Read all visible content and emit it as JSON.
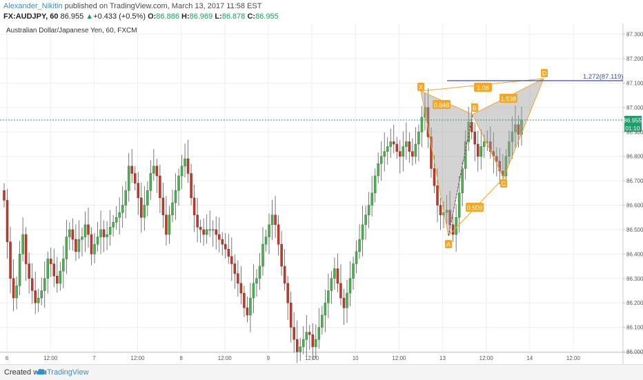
{
  "header": {
    "author": "Alexander_Nikitin",
    "published": "published on TradingView.com, March 13, 2017 11:58 EST",
    "symbol": "FX:AUDJPY, 60",
    "last": "86.955",
    "arrow": "▲",
    "change": "+0.433 (+0.5%)",
    "o_label": "O:",
    "o_value": "86.886",
    "h_label": "H:",
    "h_value": "86.969",
    "l_label": "L:",
    "l_value": "86.878",
    "c_label": "C:",
    "c_value": "86.955"
  },
  "chart": {
    "title": "Australian Dollar/Japanese Yen, 60, FXCM",
    "price_ticks": [
      "87.300",
      "87.200",
      "87.100",
      "87.000",
      "86.900",
      "86.800",
      "86.700",
      "86.600",
      "86.500",
      "86.400",
      "86.300",
      "86.200",
      "86.100",
      "86.000"
    ],
    "time_labels": [
      "6",
      "12:00",
      "7",
      "12:00",
      "8",
      "12:00",
      "9",
      "12:00",
      "10",
      "12:00",
      "13",
      "12:00",
      "14",
      "12:00"
    ],
    "current_price_label": "86.955",
    "countdown_label": "01:10",
    "fib_label": "1.272(87.119)",
    "pattern_points": [
      "X",
      "A",
      "B",
      "C",
      "D"
    ],
    "pattern_ratios": [
      "0.848",
      "1.08",
      "1.538",
      "0.509"
    ],
    "colors": {
      "up": "#4caf50",
      "down": "#c0392b",
      "pattern": "#f5a623",
      "fib_line": "#3949ab",
      "price_line": "#1e9e6b"
    }
  },
  "chart_data": {
    "type": "candlestick",
    "title": "Australian Dollar/Japanese Yen, 60, FXCM",
    "y_range": [
      86.0,
      87.33
    ],
    "x_labels": [
      "6",
      "12:00",
      "7",
      "12:00",
      "8",
      "12:00",
      "9",
      "12:00",
      "10",
      "12:00",
      "13",
      "12:00",
      "14",
      "12:00"
    ],
    "last_price": 86.955,
    "harmonic_pattern": {
      "points": [
        {
          "name": "X",
          "price": 87.06
        },
        {
          "name": "A",
          "price": 86.48
        },
        {
          "name": "B",
          "price": 86.97
        },
        {
          "name": "C",
          "price": 86.72
        },
        {
          "name": "D",
          "price": 87.119
        }
      ],
      "ratios": {
        "XB": 0.848,
        "XD": 1.08,
        "BD": 1.538,
        "AC": 0.509
      }
    },
    "fib_extension": {
      "level": 1.272,
      "price": 87.119
    },
    "closes": [
      86.62,
      86.45,
      86.3,
      86.22,
      86.27,
      86.4,
      86.48,
      86.36,
      86.3,
      86.25,
      86.2,
      86.22,
      86.25,
      86.3,
      86.38,
      86.36,
      86.31,
      86.28,
      86.33,
      86.38,
      86.47,
      86.5,
      86.46,
      86.41,
      86.46,
      86.47,
      86.52,
      86.48,
      86.4,
      86.44,
      86.47,
      86.5,
      86.47,
      86.48,
      86.51,
      86.53,
      86.55,
      86.57,
      86.6,
      86.66,
      86.76,
      86.73,
      86.69,
      86.63,
      86.55,
      86.6,
      86.66,
      86.73,
      86.76,
      86.72,
      86.63,
      86.56,
      86.48,
      86.56,
      86.61,
      86.66,
      86.72,
      86.76,
      86.79,
      86.73,
      86.63,
      86.56,
      86.51,
      86.5,
      86.48,
      86.5,
      86.5,
      86.5,
      86.48,
      86.46,
      86.44,
      86.42,
      86.39,
      86.36,
      86.32,
      86.28,
      86.24,
      86.18,
      86.15,
      86.22,
      86.28,
      86.3,
      86.35,
      86.44,
      86.47,
      86.52,
      86.56,
      86.52,
      86.44,
      86.35,
      86.28,
      86.2,
      86.1,
      86.05,
      86.0,
      86.02,
      86.05,
      86.08,
      86.07,
      86.02,
      86.05,
      86.1,
      86.15,
      86.2,
      86.25,
      86.3,
      86.34,
      86.28,
      86.22,
      86.18,
      86.24,
      86.3,
      86.36,
      86.41,
      86.46,
      86.52,
      86.56,
      86.6,
      86.65,
      86.72,
      86.77,
      86.8,
      86.82,
      86.84,
      86.86,
      86.85,
      86.82,
      86.8,
      86.84,
      86.86,
      86.82,
      86.8,
      86.85,
      86.9,
      86.96,
      87.0,
      86.88,
      86.75,
      86.68,
      86.6,
      86.56,
      86.57,
      86.58,
      86.52,
      86.48,
      86.55,
      86.65,
      86.75,
      86.86,
      86.94,
      86.9,
      86.85,
      86.8,
      86.84,
      86.86,
      86.86,
      86.82,
      86.8,
      86.78,
      86.74,
      86.72,
      86.8,
      86.86,
      86.9,
      86.93,
      86.89,
      86.95
    ]
  }
}
